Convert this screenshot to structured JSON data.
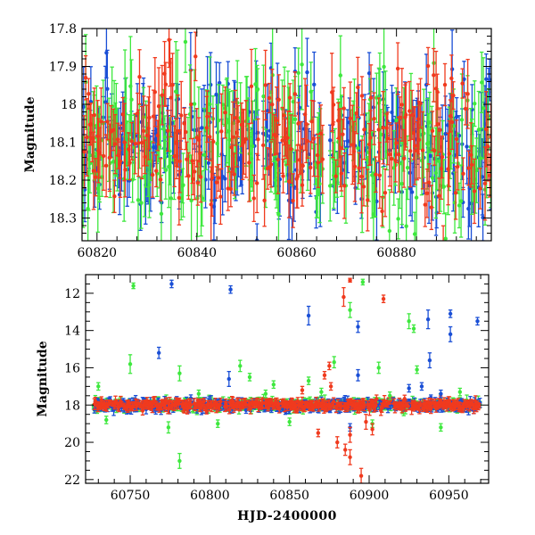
{
  "colors": {
    "blue": "#1a4fd6",
    "green": "#3ee83e",
    "red": "#f03a1e"
  },
  "chart_data": [
    {
      "type": "scatter",
      "xlabel": "",
      "ylabel": "Magnitude",
      "xlim": [
        60817,
        60899
      ],
      "ylim": [
        18.36,
        17.8
      ],
      "y_inverted": true,
      "x_ticks": [
        "60820",
        "60840",
        "60860",
        "60880"
      ],
      "x_tick_values": [
        60820,
        60840,
        60860,
        60880
      ],
      "y_ticks": [
        "17.8",
        "17.9",
        "18",
        "18.1",
        "18.2",
        "18.3"
      ],
      "y_tick_values": [
        17.8,
        17.9,
        18.0,
        18.1,
        18.2,
        18.3
      ],
      "series": [
        {
          "color": "blue",
          "typical_mag": 18.1,
          "scatter": 0.09,
          "error_bar": 0.07
        },
        {
          "color": "green",
          "typical_mag": 18.1,
          "scatter": 0.1,
          "error_bar": 0.09
        },
        {
          "color": "red",
          "typical_mag": 18.1,
          "scatter": 0.08,
          "error_bar": 0.07
        }
      ],
      "gaps": [
        [
          60852.3,
          60853.2
        ],
        [
          60865.3,
          60866.5
        ]
      ]
    },
    {
      "type": "scatter",
      "xlabel": "HJD-2400000",
      "ylabel": "Magnitude",
      "xlim": [
        60722,
        60975
      ],
      "ylim": [
        22.2,
        11.0
      ],
      "y_inverted": true,
      "x_ticks": [
        "60750",
        "60800",
        "60850",
        "60900",
        "60950"
      ],
      "x_tick_values": [
        60750,
        60800,
        60850,
        60900,
        60950
      ],
      "y_ticks": [
        "12",
        "14",
        "16",
        "18",
        "20",
        "22"
      ],
      "y_tick_values": [
        12,
        14,
        16,
        18,
        20,
        22
      ],
      "baseline_mag": 18.0,
      "series": [
        {
          "color": "blue",
          "outliers": [
            [
              60776,
              11.5,
              0.2
            ],
            [
              60813,
              11.8,
              0.2
            ],
            [
              60768,
              15.2,
              0.3
            ],
            [
              60862,
              13.2,
              0.5
            ],
            [
              60893,
              13.8,
              0.3
            ],
            [
              60937,
              13.4,
              0.5
            ],
            [
              60951,
              13.1,
              0.2
            ],
            [
              60951,
              14.2,
              0.4
            ],
            [
              60968,
              13.5,
              0.2
            ],
            [
              60938,
              15.6,
              0.4
            ],
            [
              60893,
              16.4,
              0.3
            ],
            [
              60812,
              16.6,
              0.4
            ],
            [
              60888,
              19.2,
              0.2
            ],
            [
              60925,
              17.1,
              0.2
            ],
            [
              60945,
              17.4,
              0.2
            ],
            [
              60933,
              17.0,
              0.2
            ]
          ]
        },
        {
          "color": "green",
          "outliers": [
            [
              60752,
              11.6,
              0.15
            ],
            [
              60896,
              11.4,
              0.15
            ],
            [
              60888,
              12.9,
              0.4
            ],
            [
              60925,
              13.5,
              0.4
            ],
            [
              60928,
              13.9,
              0.2
            ],
            [
              60750,
              15.8,
              0.5
            ],
            [
              60781,
              16.3,
              0.4
            ],
            [
              60819,
              15.9,
              0.3
            ],
            [
              60878,
              15.7,
              0.3
            ],
            [
              60906,
              16.0,
              0.3
            ],
            [
              60825,
              16.5,
              0.2
            ],
            [
              60862,
              16.7,
              0.2
            ],
            [
              60730,
              17.0,
              0.2
            ],
            [
              60781,
              21.0,
              0.4
            ],
            [
              60774,
              19.2,
              0.3
            ],
            [
              60835,
              17.4,
              0.2
            ],
            [
              60870,
              17.3,
              0.2
            ],
            [
              60913,
              17.5,
              0.2
            ],
            [
              60930,
              16.1,
              0.2
            ],
            [
              60735,
              18.8,
              0.2
            ],
            [
              60805,
              19.0,
              0.2
            ],
            [
              60850,
              18.9,
              0.2
            ],
            [
              60902,
              19.0,
              0.2
            ],
            [
              60945,
              19.2,
              0.2
            ],
            [
              60793,
              17.4,
              0.2
            ],
            [
              60840,
              16.9,
              0.2
            ],
            [
              60957,
              17.3,
              0.2
            ]
          ]
        },
        {
          "color": "red",
          "outliers": [
            [
              60888,
              11.3,
              0.1
            ],
            [
              60884,
              12.2,
              0.5
            ],
            [
              60909,
              12.3,
              0.2
            ],
            [
              60875,
              15.9,
              0.2
            ],
            [
              60872,
              16.4,
              0.2
            ],
            [
              60876,
              17.0,
              0.2
            ],
            [
              60888,
              19.6,
              0.4
            ],
            [
              60880,
              20.0,
              0.3
            ],
            [
              60888,
              20.8,
              0.4
            ],
            [
              60895,
              21.8,
              0.4
            ],
            [
              60902,
              19.3,
              0.3
            ],
            [
              60885,
              20.4,
              0.3
            ],
            [
              60868,
              19.5,
              0.2
            ],
            [
              60898,
              18.9,
              0.4
            ],
            [
              60858,
              17.2,
              0.2
            ]
          ]
        }
      ]
    }
  ]
}
